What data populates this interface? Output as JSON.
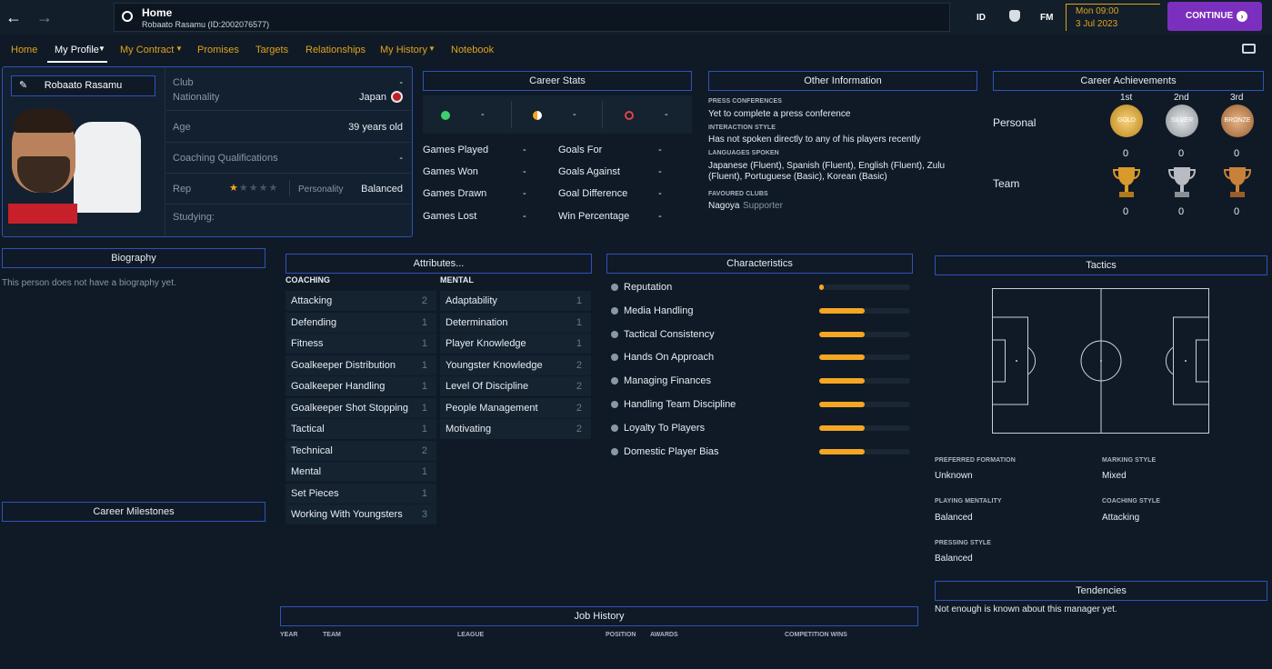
{
  "topbar": {
    "title": "Home",
    "subtitle": "Robaato Rasamu (ID:2002076577)",
    "id_label": "ID",
    "fm_label": "FM",
    "date_time": "Mon 09:00",
    "date": "3 Jul 2023",
    "continue_label": "CONTINUE"
  },
  "nav": {
    "items": [
      "Home",
      "My Profile",
      "My Contract",
      "Promises",
      "Targets",
      "Relationships",
      "My History",
      "Notebook"
    ]
  },
  "profile": {
    "name": "Robaato Rasamu",
    "club_label": "Club",
    "club_value": "-",
    "nationality_label": "Nationality",
    "nationality_value": "Japan",
    "age_label": "Age",
    "age_value": "39 years old",
    "coaching_label": "Coaching Qualifications",
    "coaching_value": "-",
    "rep_label": "Rep",
    "personality_label": "Personality",
    "personality_value": "Balanced",
    "studying_label": "Studying:",
    "rep_stars": 0.5
  },
  "career_stats": {
    "title": "Career Stats",
    "summary": [
      "-",
      "-",
      "-"
    ],
    "left": [
      {
        "label": "Games Played",
        "value": "-"
      },
      {
        "label": "Games Won",
        "value": "-"
      },
      {
        "label": "Games Drawn",
        "value": "-"
      },
      {
        "label": "Games Lost",
        "value": "-"
      }
    ],
    "right": [
      {
        "label": "Goals For",
        "value": "-"
      },
      {
        "label": "Goals Against",
        "value": "-"
      },
      {
        "label": "Goal Difference",
        "value": "-"
      },
      {
        "label": "Win Percentage",
        "value": "-"
      }
    ]
  },
  "other_info": {
    "title": "Other Information",
    "press_label": "PRESS CONFERENCES",
    "press_value": "Yet to complete a press conference",
    "interaction_label": "INTERACTION STYLE",
    "interaction_value": "Has not spoken directly to any of his players recently",
    "languages_label": "LANGUAGES SPOKEN",
    "languages_line1": "Japanese (Fluent), Spanish (Fluent), English (Fluent), Zulu",
    "languages_line2": "(Fluent), Portuguese (Basic), Korean (Basic)",
    "clubs_label": "FAVOURED CLUBS",
    "club_name": "Nagoya",
    "club_role": "Supporter"
  },
  "achievements": {
    "title": "Career Achievements",
    "places": [
      "1st",
      "2nd",
      "3rd"
    ],
    "personal_label": "Personal",
    "team_label": "Team",
    "medal_labels": [
      "GOLD",
      "SILVER",
      "BRONZE"
    ],
    "personal_counts": [
      "0",
      "0",
      "0"
    ],
    "team_counts": [
      "0",
      "0",
      "0"
    ]
  },
  "biography": {
    "title": "Biography",
    "text": "This person does not have a biography yet."
  },
  "milestones": {
    "title": "Career Milestones"
  },
  "attributes": {
    "title": "Attributes...",
    "coaching_label": "COACHING",
    "mental_label": "MENTAL",
    "coaching": [
      {
        "name": "Attacking",
        "value": "2"
      },
      {
        "name": "Defending",
        "value": "1"
      },
      {
        "name": "Fitness",
        "value": "1"
      },
      {
        "name": "Goalkeeper Distribution",
        "value": "1"
      },
      {
        "name": "Goalkeeper Handling",
        "value": "1"
      },
      {
        "name": "Goalkeeper Shot Stopping",
        "value": "1"
      },
      {
        "name": "Tactical",
        "value": "1"
      },
      {
        "name": "Technical",
        "value": "2"
      },
      {
        "name": "Mental",
        "value": "1"
      },
      {
        "name": "Set Pieces",
        "value": "1"
      },
      {
        "name": "Working With Youngsters",
        "value": "3"
      }
    ],
    "mental": [
      {
        "name": "Adaptability",
        "value": "1"
      },
      {
        "name": "Determination",
        "value": "1"
      },
      {
        "name": "Player Knowledge",
        "value": "1"
      },
      {
        "name": "Youngster Knowledge",
        "value": "2"
      },
      {
        "name": "Level Of Discipline",
        "value": "2"
      },
      {
        "name": "People Management",
        "value": "2"
      },
      {
        "name": "Motivating",
        "value": "2"
      }
    ]
  },
  "characteristics": {
    "title": "Characteristics",
    "items": [
      {
        "name": "Reputation",
        "level": 0.05
      },
      {
        "name": "Media Handling",
        "level": 0.5
      },
      {
        "name": "Tactical Consistency",
        "level": 0.5
      },
      {
        "name": "Hands On Approach",
        "level": 0.5
      },
      {
        "name": "Managing Finances",
        "level": 0.5
      },
      {
        "name": "Handling Team Discipline",
        "level": 0.5
      },
      {
        "name": "Loyalty To Players",
        "level": 0.5
      },
      {
        "name": "Domestic Player Bias",
        "level": 0.5
      }
    ]
  },
  "tactics": {
    "title": "Tactics",
    "preferred_formation_label": "PREFERRED FORMATION",
    "preferred_formation": "Unknown",
    "marking_label": "MARKING STYLE",
    "marking": "Mixed",
    "mentality_label": "PLAYING MENTALITY",
    "mentality": "Balanced",
    "coaching_style_label": "COACHING STYLE",
    "coaching_style": "Attacking",
    "pressing_label": "PRESSING STYLE",
    "pressing": "Balanced"
  },
  "tendencies": {
    "title": "Tendencies",
    "text": "Not enough is known about this manager yet."
  },
  "job_history": {
    "title": "Job History",
    "columns": [
      "YEAR",
      "TEAM",
      "LEAGUE",
      "POSITION",
      "AWARDS",
      "COMPETITION WINS"
    ]
  },
  "colors": {
    "accent": "#f5a623",
    "nav": "#e2a21c",
    "border": "#2f52b8",
    "continue": "#7b2fbe"
  }
}
